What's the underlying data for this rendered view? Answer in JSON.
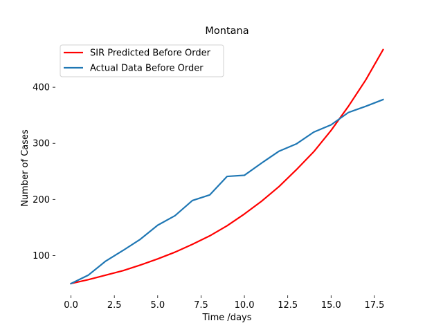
{
  "chart_data": {
    "type": "line",
    "title": "Montana",
    "xlabel": "Time /days",
    "ylabel": "Number of Cases",
    "xlim": [
      -0.9,
      18.9
    ],
    "ylim": [
      29,
      484
    ],
    "xticks": [
      0.0,
      2.5,
      5.0,
      7.5,
      10.0,
      12.5,
      15.0,
      17.5
    ],
    "xtick_labels": [
      "0.0",
      "2.5",
      "5.0",
      "7.5",
      "10.0",
      "12.5",
      "15.0",
      "17.5"
    ],
    "yticks": [
      100,
      200,
      300,
      400
    ],
    "ytick_labels": [
      "100",
      "200",
      "300",
      "400"
    ],
    "grid": false,
    "legend_position": "top-left",
    "series": [
      {
        "name": "SIR Predicted Before Order",
        "color": "#ff0000",
        "x": [
          0,
          1,
          2,
          3,
          4,
          5,
          6,
          7,
          8,
          9,
          10,
          11,
          12,
          13,
          14,
          15,
          16,
          17,
          18
        ],
        "values": [
          50,
          57,
          65,
          73,
          83,
          94,
          106,
          120,
          135,
          153,
          174,
          197,
          223,
          253,
          285,
          323,
          366,
          413,
          467
        ]
      },
      {
        "name": "Actual Data Before Order",
        "color": "#1f77b4",
        "x": [
          0,
          1,
          2,
          3,
          4,
          5,
          6,
          7,
          8,
          9,
          10,
          11,
          12,
          13,
          14,
          15,
          16,
          17,
          18
        ],
        "values": [
          50,
          65,
          90,
          109,
          129,
          154,
          171,
          198,
          208,
          241,
          243,
          265,
          286,
          299,
          320,
          333,
          355,
          366,
          378
        ]
      }
    ]
  }
}
